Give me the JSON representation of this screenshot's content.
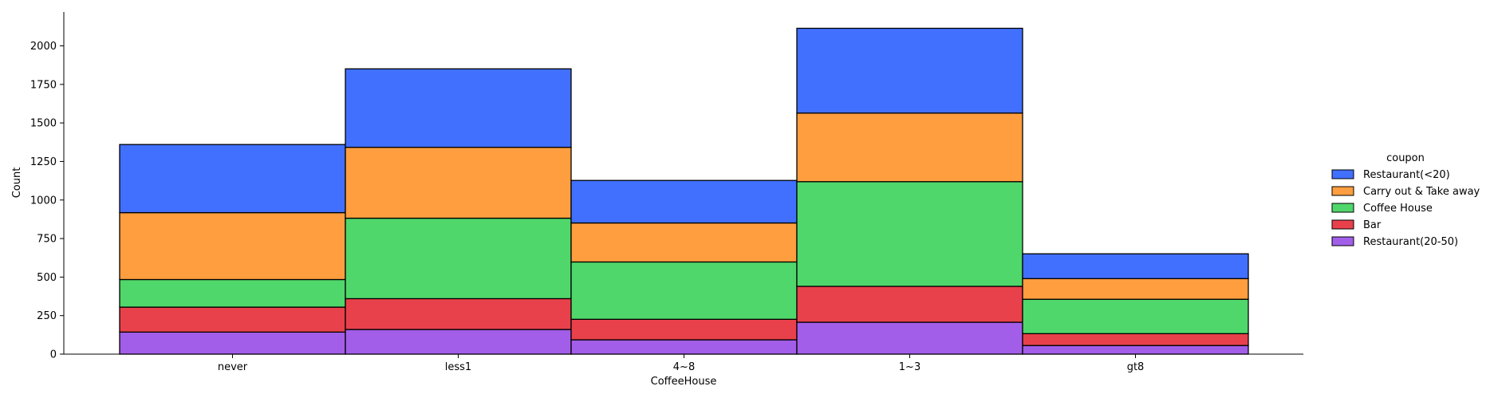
{
  "chart_data": {
    "type": "bar",
    "stacked": true,
    "xlabel": "CoffeeHouse",
    "ylabel": "Count",
    "categories": [
      "never",
      "less1",
      "4~8",
      "1~3",
      "gt8"
    ],
    "ylim": [
      0,
      2220
    ],
    "yticks": [
      0,
      250,
      500,
      750,
      1000,
      1250,
      1500,
      1750,
      2000
    ],
    "series": [
      {
        "name": "Restaurant(20-50)",
        "color": "#a35ee9",
        "values": [
          143,
          160,
          93,
          207,
          56
        ]
      },
      {
        "name": "Bar",
        "color": "#e8414b",
        "values": [
          162,
          200,
          133,
          233,
          77
        ]
      },
      {
        "name": "Coffee House",
        "color": "#50d76b",
        "values": [
          179,
          522,
          372,
          679,
          223
        ]
      },
      {
        "name": "Carry out & Take away",
        "color": "#ff9e3f",
        "values": [
          434,
          460,
          253,
          445,
          134
        ]
      },
      {
        "name": "Restaurant(<20)",
        "color": "#4170fe",
        "values": [
          442,
          509,
          276,
          550,
          161
        ]
      }
    ],
    "legend": {
      "title": "coupon",
      "placement": "right",
      "order": [
        "Restaurant(<20)",
        "Carry out & Take away",
        "Coffee House",
        "Bar",
        "Restaurant(20-50)"
      ]
    },
    "grid": false
  }
}
